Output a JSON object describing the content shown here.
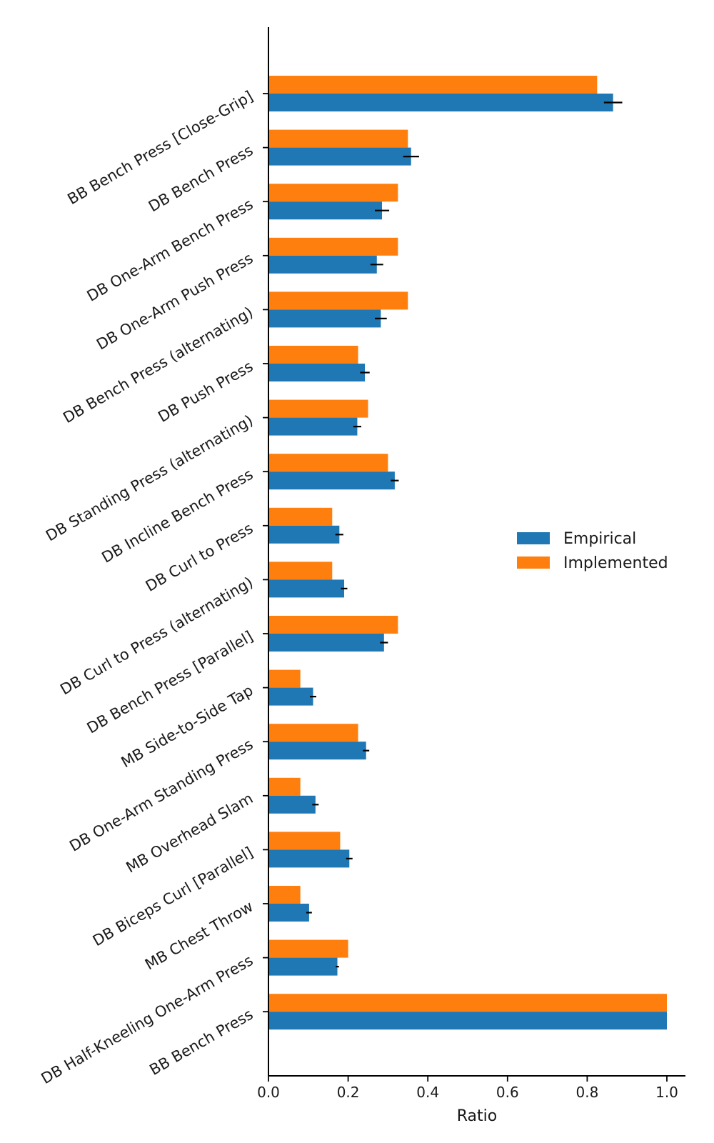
{
  "chart_data": {
    "type": "bar",
    "orientation": "horizontal",
    "title": "",
    "xlabel": "Ratio",
    "ylabel": "",
    "xlim": [
      0.0,
      1.05
    ],
    "xticks": [
      "0.0",
      "0.2",
      "0.4",
      "0.6",
      "0.8",
      "1.0"
    ],
    "xtick_values": [
      0.0,
      0.2,
      0.4,
      0.6,
      0.8,
      1.0
    ],
    "grid": false,
    "legend_position": "right-center",
    "categories": [
      "BB Bench Press [Close-Grip]",
      "DB Bench Press",
      "DB One-Arm Bench Press",
      "DB One-Arm Push Press",
      "DB Bench Press (alternating)",
      "DB Push Press",
      "DB Standing Press (alternating)",
      "DB Incline Bench Press",
      "DB Curl to Press",
      "DB Curl to Press (alternating)",
      "DB Bench Press [Parallel]",
      "MB Side-to-Side Tap",
      "DB One-Arm Standing Press",
      "MB Overhead Slam",
      "DB Biceps Curl [Parallel]",
      "MB Chest Throw",
      "DB Half-Kneeling One-Arm Press",
      "BB Bench Press"
    ],
    "series": [
      {
        "name": "Empirical",
        "color": "#1f77b4",
        "values": [
          0.865,
          0.358,
          0.285,
          0.272,
          0.282,
          0.242,
          0.223,
          0.317,
          0.178,
          0.19,
          0.29,
          0.112,
          0.245,
          0.118,
          0.203,
          0.102,
          0.173,
          1.0
        ],
        "errors": [
          0.023,
          0.02,
          0.018,
          0.016,
          0.015,
          0.012,
          0.01,
          0.01,
          0.01,
          0.008,
          0.01,
          0.008,
          0.008,
          0.008,
          0.008,
          0.007,
          0.004,
          0.0
        ]
      },
      {
        "name": "Implemented",
        "color": "#ff7f0e",
        "values": [
          0.825,
          0.35,
          0.325,
          0.325,
          0.35,
          0.225,
          0.25,
          0.3,
          0.16,
          0.16,
          0.325,
          0.08,
          0.225,
          0.08,
          0.18,
          0.08,
          0.2,
          1.0
        ]
      }
    ]
  }
}
